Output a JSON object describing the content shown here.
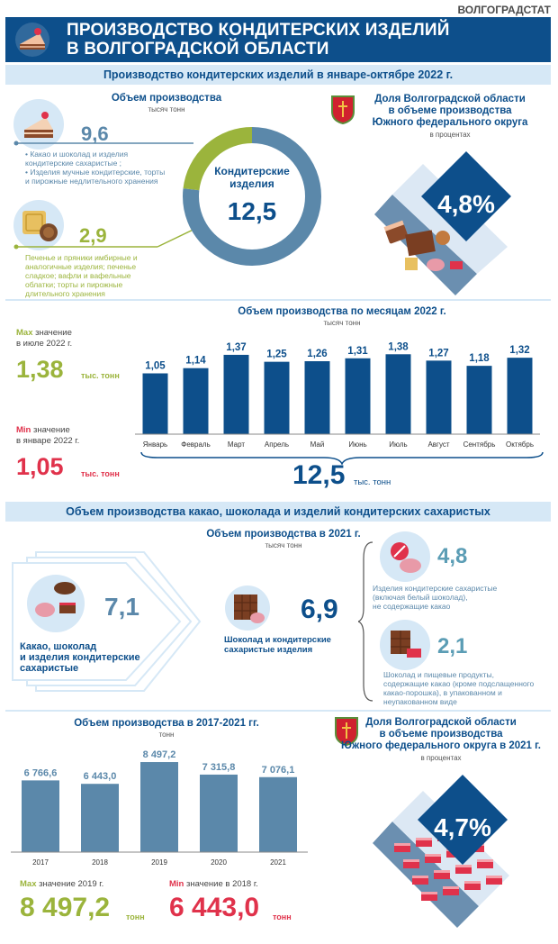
{
  "brand": "ВОЛГОГРАДСТАТ",
  "header": {
    "title_line1": "ПРОИЗВОДСТВО КОНДИТЕРСКИХ ИЗДЕЛИЙ",
    "title_line2": "В ВОЛГОГРАДСКОЙ ОБЛАСТИ"
  },
  "section1": {
    "band": "Производство кондитерских изделий в январе-октябре 2022 г.",
    "volume_title": "Объем производства",
    "volume_unit": "тысяч тонн",
    "item1_value": "9,6",
    "item1_desc1": "• Какао и шоколад и изделия",
    "item1_desc2": "кондитерские сахаристые ;",
    "item1_desc3": "• Изделия мучные кондитерские, торты",
    "item1_desc4": "и пирожные недлительного хранения",
    "item2_value": "2,9",
    "item2_desc1": "Печенье и пряники  имбирные и",
    "item2_desc2": "аналогичные изделия; печенье",
    "item2_desc3": "сладкое;  вафли и вафельные",
    "item2_desc4": "облатки; торты и пирожные",
    "item2_desc5": "длительного хранения",
    "donut_label1": "Кондитерские",
    "donut_label2": "изделия",
    "donut_total": "12,5",
    "share_title1": "Доля Волгоградской области",
    "share_title2": "в объеме производства",
    "share_title3": "Южного  федерального округа",
    "share_unit": "в процентах",
    "share_value": "4,8%"
  },
  "monthly": {
    "title": "Объем производства по месяцам 2022 г.",
    "unit": "тысяч тонн",
    "max_word": "Max",
    "max_text1": " значение",
    "max_text2": "в июле 2022 г.",
    "max_value": "1,38",
    "max_unit": "тыс. тонн",
    "min_word": "Min",
    "min_text1": " значение",
    "min_text2": "в январе 2022 г.",
    "min_value": "1,05",
    "min_unit": "тыс. тонн",
    "total_value": "12,5",
    "total_unit": "тыс. тонн"
  },
  "section2": {
    "band": "Объем производства  какао, шоколада и изделий кондитерских сахаристых",
    "title": "Объем производства в 2021 г.",
    "unit": "тысяч тонн",
    "cocoa_value": "7,1",
    "cocoa_label1": "Какао, шоколад",
    "cocoa_label2": "и изделия кондитерские",
    "cocoa_label3": "сахаристые",
    "choco_value": "6,9",
    "choco_label1": "Шоколад и кондитерские",
    "choco_label2": "сахаристые изделия",
    "sugar_value": "4,8",
    "sugar_desc1": "Изделия кондитерские сахаристые",
    "sugar_desc2": "(включая белый шоколад),",
    "sugar_desc3": "не содержащие какао",
    "cocoa_prod_value": "2,1",
    "cocoa_prod_desc1": "Шоколад и пищевые продукты,",
    "cocoa_prod_desc2": "содержащие какао (кроме подслащенного",
    "cocoa_prod_desc3": "какао-порошка), в упакованном и",
    "cocoa_prod_desc4": "неупакованном виде"
  },
  "yearly": {
    "title": "Объем производства в 2017-2021 гг.",
    "unit": "тонн",
    "max_word": "Max",
    "max_text": " значение 2019 г.",
    "max_value": "8 497,2",
    "max_unit": "тонн",
    "min_word": "Min",
    "min_text": " значение в 2018 г.",
    "min_value": "6 443,0",
    "min_unit": "тонн",
    "share_title1": "Доля Волгоградской области",
    "share_title2": "в объеме производства",
    "share_title3": "Южного  федерального округа в 2021 г.",
    "share_unit": "в процентах",
    "share_value": "4,7%"
  },
  "colors": {
    "navy": "#0d4f8b",
    "steel": "#5b88aa",
    "olive": "#9bb43c",
    "red": "#e0324b",
    "light": "#d6e8f6"
  },
  "chart_data": [
    {
      "type": "pie",
      "title": "Кондитерские изделия",
      "categories": [
        "9,6",
        "2,9"
      ],
      "values": [
        9.6,
        2.9
      ],
      "colors": [
        "#5b88aa",
        "#9bb43c"
      ]
    },
    {
      "type": "bar",
      "title": "Объем производства по месяцам 2022 г.",
      "ylabel": "тысяч тонн",
      "categories": [
        "Январь",
        "Февраль",
        "Март",
        "Апрель",
        "Май",
        "Июнь",
        "Июль",
        "Август",
        "Сентябрь",
        "Октябрь"
      ],
      "values": [
        1.05,
        1.14,
        1.37,
        1.25,
        1.26,
        1.31,
        1.38,
        1.27,
        1.18,
        1.32
      ],
      "labels": [
        "1,05",
        "1,14",
        "1,37",
        "1,25",
        "1,26",
        "1,31",
        "1,38",
        "1,27",
        "1,18",
        "1,32"
      ],
      "ylim": [
        0,
        1.4
      ],
      "color": "#0d4f8b"
    },
    {
      "type": "bar",
      "title": "Объем производства в 2017-2021 гг.",
      "ylabel": "тонн",
      "categories": [
        "2017",
        "2018",
        "2019",
        "2020",
        "2021"
      ],
      "values": [
        6766.6,
        6443.0,
        8497.2,
        7315.8,
        7076.1
      ],
      "labels": [
        "6 766,6",
        "6 443,0",
        "8 497,2",
        "7 315,8",
        "7 076,1"
      ],
      "ylim": [
        0,
        8500
      ],
      "color": "#5b88aa"
    }
  ]
}
